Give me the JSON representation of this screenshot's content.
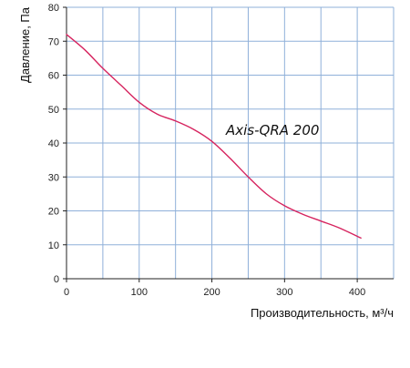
{
  "chart_data": {
    "type": "line",
    "xlabel": "Производительность, м³/ч",
    "ylabel": "Давление, Па",
    "xlim": [
      0,
      450
    ],
    "ylim": [
      0,
      80
    ],
    "x_grid_step": 50,
    "y_grid_step": 10,
    "x_ticks": [
      0,
      100,
      200,
      300,
      400
    ],
    "y_ticks": [
      0,
      10,
      20,
      30,
      40,
      50,
      60,
      70,
      80
    ],
    "grid": true,
    "grid_color": "#8fb0d9",
    "line_color": "#d6245f",
    "annotation": "Axis-QRA 200",
    "series": [
      {
        "name": "Axis-QRA 200",
        "x": [
          0,
          25,
          50,
          75,
          100,
          125,
          150,
          175,
          200,
          225,
          250,
          275,
          300,
          325,
          350,
          375,
          405
        ],
        "y": [
          72,
          67.5,
          62,
          57,
          52,
          48.5,
          46.5,
          44,
          40.5,
          35.5,
          30,
          25,
          21.5,
          19,
          17,
          15,
          12
        ]
      }
    ]
  }
}
